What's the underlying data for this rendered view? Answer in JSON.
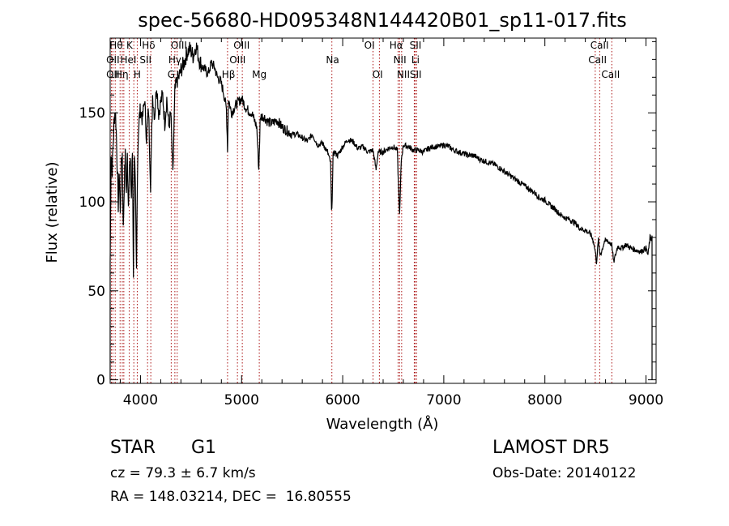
{
  "chart_data": {
    "type": "line",
    "title": "spec-56680-HD095348N144420B01_sp11-017.fits",
    "xlabel": "Wavelength (Å)",
    "ylabel": "Flux (relative)",
    "xlim": [
      3700,
      9100
    ],
    "ylim": [
      -2,
      192
    ],
    "xticks": [
      4000,
      5000,
      6000,
      7000,
      8000,
      9000
    ],
    "yticks": [
      0,
      50,
      100,
      150
    ],
    "grid": false,
    "series": [
      {
        "x": [
          3700,
          3710,
          3720,
          3730,
          3740,
          3750,
          3760,
          3770,
          3780,
          3790,
          3800,
          3810,
          3820,
          3830,
          3840,
          3850,
          3860,
          3870,
          3880,
          3890,
          3900,
          3910,
          3920,
          3930,
          3940,
          3950,
          3960,
          3970,
          3980,
          3990,
          4000,
          4020,
          4040,
          4060,
          4080,
          4100,
          4120,
          4140,
          4160,
          4180,
          4200,
          4220,
          4240,
          4260,
          4280,
          4300,
          4320,
          4340,
          4360,
          4380,
          4400,
          4430,
          4460,
          4490,
          4520,
          4550,
          4580,
          4610,
          4640,
          4670,
          4700,
          4730,
          4760,
          4790,
          4820,
          4850,
          4861,
          4870,
          4900,
          4950,
          5000,
          5050,
          5100,
          5150,
          5170,
          5183,
          5190,
          5220,
          5260,
          5300,
          5350,
          5400,
          5450,
          5500,
          5550,
          5600,
          5650,
          5700,
          5750,
          5800,
          5850,
          5880,
          5890,
          5896,
          5905,
          5920,
          5950,
          6000,
          6050,
          6100,
          6150,
          6200,
          6250,
          6300,
          6330,
          6350,
          6400,
          6450,
          6500,
          6540,
          6563,
          6580,
          6600,
          6650,
          6700,
          6750,
          6800,
          6850,
          6900,
          6950,
          7000,
          7050,
          7100,
          7150,
          7200,
          7250,
          7300,
          7350,
          7400,
          7450,
          7500,
          7550,
          7600,
          7650,
          7700,
          7750,
          7800,
          7850,
          7900,
          7950,
          8000,
          8050,
          8100,
          8150,
          8200,
          8250,
          8300,
          8350,
          8400,
          8450,
          8480,
          8498,
          8510,
          8530,
          8542,
          8560,
          8590,
          8620,
          8662,
          8680,
          8720,
          8760,
          8800,
          8850,
          8900,
          8950,
          9000,
          9020,
          9040,
          9050,
          9060
        ],
        "y": [
          66,
          128,
          118,
          133,
          146,
          152,
          140,
          120,
          98,
          118,
          92,
          120,
          127,
          84,
          112,
          126,
          104,
          126,
          98,
          120,
          120,
          102,
          128,
          60,
          128,
          104,
          60,
          118,
          140,
          148,
          152,
          146,
          158,
          136,
          152,
          110,
          160,
          148,
          166,
          150,
          156,
          160,
          144,
          158,
          142,
          150,
          114,
          162,
          168,
          170,
          174,
          178,
          184,
          186,
          182,
          188,
          180,
          176,
          174,
          172,
          178,
          176,
          170,
          168,
          162,
          152,
          130,
          158,
          150,
          155,
          158,
          152,
          150,
          142,
          118,
          144,
          148,
          148,
          145,
          144,
          146,
          142,
          140,
          138,
          138,
          136,
          134,
          138,
          132,
          133,
          128,
          122,
          94,
          102,
          126,
          128,
          126,
          131,
          135,
          134,
          130,
          131,
          128,
          129,
          118,
          128,
          128,
          130,
          131,
          129,
          92,
          124,
          132,
          131,
          129,
          129,
          128,
          130,
          131,
          131,
          132,
          131,
          129,
          128,
          127,
          126,
          126,
          124,
          123,
          122,
          121,
          119,
          117,
          115,
          113,
          111,
          109,
          107,
          105,
          102,
          101,
          98,
          96,
          93,
          91,
          90,
          88,
          85,
          84,
          82,
          78,
          72,
          66,
          79,
          70,
          72,
          78,
          78,
          76,
          66,
          75,
          74,
          76,
          74,
          73,
          72,
          74,
          70,
          80,
          79,
          81
        ]
      }
    ],
    "lines": [
      {
        "x": 3712,
        "label": "Hθ"
      },
      {
        "x": 3727,
        "label": "OII"
      },
      {
        "x": 3750,
        "label": "OII"
      },
      {
        "x": 3798,
        "label": "Hθ"
      },
      {
        "x": 3820,
        "label": "HeI"
      },
      {
        "x": 3835,
        "label": "Hη"
      },
      {
        "x": 3889,
        "label": "Hη"
      },
      {
        "x": 3934,
        "label": "K"
      },
      {
        "x": 3968,
        "label": "H"
      },
      {
        "x": 4102,
        "label": "Hδ"
      },
      {
        "x": 4070,
        "label": "SII"
      },
      {
        "x": 4304,
        "label": "G"
      },
      {
        "x": 4340,
        "label": "Hγ"
      },
      {
        "x": 4363,
        "label": "OIII"
      },
      {
        "x": 4861,
        "label": "Hβ"
      },
      {
        "x": 4959,
        "label": "OIII"
      },
      {
        "x": 5007,
        "label": "OIII"
      },
      {
        "x": 5175,
        "label": "Mg"
      },
      {
        "x": 5893,
        "label": "Na"
      },
      {
        "x": 6300,
        "label": "OI"
      },
      {
        "x": 6363,
        "label": "OI"
      },
      {
        "x": 6548,
        "label": "NII"
      },
      {
        "x": 6563,
        "label": "Hα"
      },
      {
        "x": 6583,
        "label": "NII"
      },
      {
        "x": 6708,
        "label": "Li"
      },
      {
        "x": 6716,
        "label": "SII"
      },
      {
        "x": 6731,
        "label": "SII"
      },
      {
        "x": 8498,
        "label": "CaII"
      },
      {
        "x": 8542,
        "label": "CaII"
      },
      {
        "x": 8662,
        "label": "CaII"
      }
    ],
    "line_labels": [
      {
        "x": 3760,
        "row": 0,
        "label": "Hθ"
      },
      {
        "x": 3892,
        "row": 0,
        "label": "K"
      },
      {
        "x": 4080,
        "row": 0,
        "label": "Hδ"
      },
      {
        "x": 4380,
        "row": 0,
        "label": "OIII"
      },
      {
        "x": 5000,
        "row": 0,
        "label": "OIII"
      },
      {
        "x": 6265,
        "row": 0,
        "label": "OI"
      },
      {
        "x": 6530,
        "row": 0,
        "label": "Hα"
      },
      {
        "x": 6720,
        "row": 0,
        "label": "SII"
      },
      {
        "x": 8540,
        "row": 0,
        "label": "CaII"
      },
      {
        "x": 3727,
        "row": 1,
        "label": "OII"
      },
      {
        "x": 3880,
        "row": 1,
        "label": "HeI"
      },
      {
        "x": 4050,
        "row": 1,
        "label": "SII"
      },
      {
        "x": 4340,
        "row": 1,
        "label": "Hγ"
      },
      {
        "x": 4960,
        "row": 1,
        "label": "OIII"
      },
      {
        "x": 5900,
        "row": 1,
        "label": "Na"
      },
      {
        "x": 6565,
        "row": 1,
        "label": "NII"
      },
      {
        "x": 6720,
        "row": 1,
        "label": "Li"
      },
      {
        "x": 8520,
        "row": 1,
        "label": "CaII"
      },
      {
        "x": 3727,
        "row": 2,
        "label": "OII"
      },
      {
        "x": 3815,
        "row": 2,
        "label": "Hη"
      },
      {
        "x": 3968,
        "row": 2,
        "label": "H"
      },
      {
        "x": 4304,
        "row": 2,
        "label": "G"
      },
      {
        "x": 4870,
        "row": 2,
        "label": "Hβ"
      },
      {
        "x": 5175,
        "row": 2,
        "label": "Mg"
      },
      {
        "x": 6345,
        "row": 2,
        "label": "OI"
      },
      {
        "x": 6600,
        "row": 2,
        "label": "NII"
      },
      {
        "x": 6722,
        "row": 2,
        "label": "SII"
      },
      {
        "x": 8650,
        "row": 2,
        "label": "CaII"
      }
    ]
  },
  "info": {
    "class_label": "STAR",
    "subclass": "G1",
    "survey": "LAMOST DR5",
    "cz": "cz = 79.3 ± 6.7 km/s",
    "obs_date": "Obs-Date: 20140122",
    "coords": "RA = 148.03214, DEC =  16.80555"
  },
  "colors": {
    "spectrum": "#000000",
    "line_markers": "#aa1111"
  }
}
